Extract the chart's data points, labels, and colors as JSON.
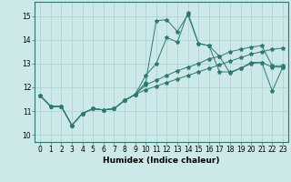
{
  "xlabel": "Humidex (Indice chaleur)",
  "background_color": "#cce8e8",
  "line_color": "#2d7a72",
  "grid_color": "#aacfcf",
  "xlim": [
    -0.5,
    23.5
  ],
  "ylim": [
    9.7,
    15.6
  ],
  "xticks": [
    0,
    1,
    2,
    3,
    4,
    5,
    6,
    7,
    8,
    9,
    10,
    11,
    12,
    13,
    14,
    15,
    16,
    17,
    18,
    19,
    20,
    21,
    22,
    23
  ],
  "yticks": [
    10,
    11,
    12,
    13,
    14,
    15
  ],
  "lines": [
    {
      "x": [
        0,
        1,
        2,
        3,
        4,
        5,
        6,
        7,
        8,
        9,
        10,
        11,
        12,
        13,
        14,
        15,
        16,
        17,
        18,
        19,
        20,
        21,
        22,
        23
      ],
      "y": [
        11.65,
        11.2,
        11.2,
        10.4,
        10.9,
        11.1,
        11.05,
        11.1,
        11.45,
        11.7,
        11.9,
        12.05,
        12.2,
        12.35,
        12.5,
        12.65,
        12.8,
        12.95,
        13.1,
        13.25,
        13.4,
        13.5,
        13.6,
        13.65
      ]
    },
    {
      "x": [
        0,
        1,
        2,
        3,
        4,
        5,
        6,
        7,
        8,
        9,
        10,
        11,
        12,
        13,
        14,
        15,
        16,
        17,
        18,
        19,
        20,
        21,
        22,
        23
      ],
      "y": [
        11.65,
        11.2,
        11.2,
        10.4,
        10.9,
        11.1,
        11.05,
        11.1,
        11.45,
        11.7,
        12.1,
        12.3,
        12.5,
        12.7,
        12.85,
        13.0,
        13.2,
        13.3,
        13.5,
        13.6,
        13.7,
        13.75,
        12.9,
        12.9
      ]
    },
    {
      "x": [
        0,
        1,
        2,
        3,
        4,
        5,
        6,
        7,
        8,
        9,
        10,
        11,
        12,
        13,
        14,
        15,
        16,
        17,
        18,
        19,
        20,
        21,
        22,
        23
      ],
      "y": [
        11.65,
        11.2,
        11.2,
        10.4,
        10.9,
        11.1,
        11.05,
        11.1,
        11.45,
        11.7,
        12.5,
        13.0,
        14.1,
        13.9,
        15.15,
        13.85,
        13.75,
        12.65,
        12.65,
        12.8,
        13.05,
        13.05,
        12.85,
        12.85
      ]
    },
    {
      "x": [
        0,
        1,
        2,
        3,
        4,
        5,
        6,
        7,
        8,
        9,
        10,
        11,
        12,
        13,
        14,
        15,
        16,
        17,
        18,
        19,
        20,
        21,
        22,
        23
      ],
      "y": [
        11.65,
        11.2,
        11.2,
        10.4,
        10.9,
        11.1,
        11.05,
        11.1,
        11.45,
        11.7,
        12.2,
        14.8,
        14.85,
        14.35,
        15.05,
        13.85,
        13.75,
        13.3,
        12.6,
        12.8,
        13.0,
        13.05,
        11.85,
        12.85
      ]
    }
  ]
}
